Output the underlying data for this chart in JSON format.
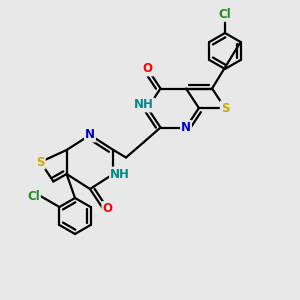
{
  "background_color": "#e8e8e8",
  "atom_colors": {
    "C": "#000000",
    "N": "#0000cd",
    "O": "#ff0000",
    "S": "#ccaa00",
    "Cl": "#228b22",
    "NH": "#008b8b"
  },
  "bond_color": "#000000",
  "bond_width": 1.6,
  "font_size_atom": 8.5
}
